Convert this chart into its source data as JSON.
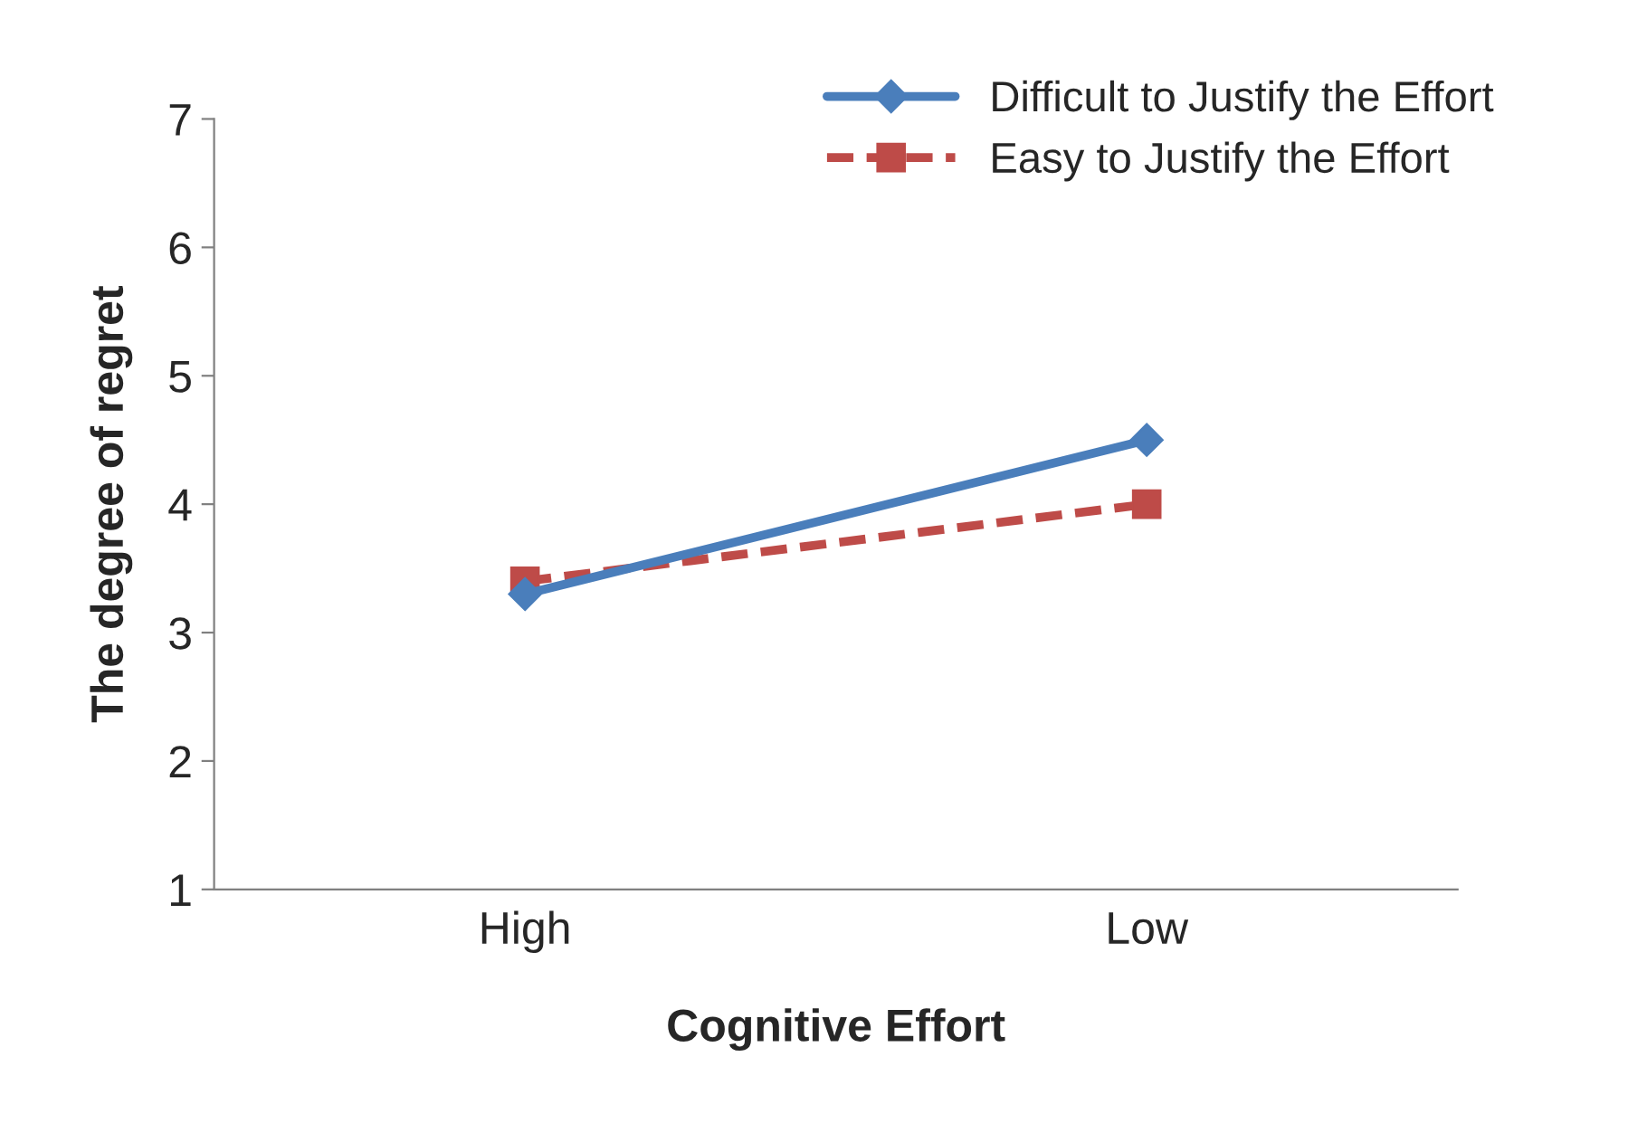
{
  "chart_data": {
    "type": "line",
    "xlabel": "Cognitive Effort",
    "ylabel": "The degree of regret",
    "categories": [
      "High",
      "Low"
    ],
    "series": [
      {
        "name": "Difficult to Justify the Effort",
        "color": "#4a7ebb",
        "values": [
          3.3,
          4.5
        ],
        "marker": "diamond",
        "line_style": "solid"
      },
      {
        "name": "Easy to Justify the Effort",
        "color": "#be4b48",
        "values": [
          3.4,
          4.0
        ],
        "marker": "square",
        "line_style": "dashed"
      }
    ],
    "ylim": [
      1,
      7
    ],
    "yticks": [
      1,
      2,
      3,
      4,
      5,
      6,
      7
    ],
    "grid": false,
    "legend": "top right"
  }
}
